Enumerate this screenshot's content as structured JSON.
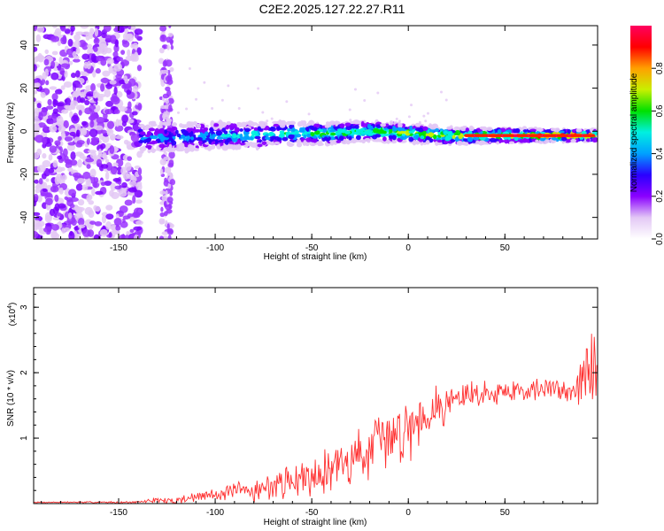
{
  "title": "C2E2.2025.127.22.27.R11",
  "chart_data": [
    {
      "type": "heatmap",
      "xlabel": "Height of straight line (km)",
      "ylabel": "Frequency (Hz)",
      "xlim": [
        -194,
        98
      ],
      "ylim": [
        -50,
        49
      ],
      "xticks": [
        -150,
        -100,
        -50,
        0,
        50
      ],
      "yticks": [
        -40,
        -20,
        0,
        20,
        40
      ],
      "colorbar": {
        "label": "Normalized spectral amplitude",
        "range": [
          0,
          1
        ],
        "ticks": [
          0.0,
          0.2,
          0.4,
          0.6,
          0.8
        ],
        "tick_labels": [
          "0.0",
          "0.2",
          "0.4",
          "0.6",
          "0.8"
        ],
        "colormap": [
          "#ffffff",
          "#e3c8f5",
          "#8a00ff",
          "#2a00ff",
          "#00a0ff",
          "#00f0e0",
          "#00e000",
          "#c8f000",
          "#ffa000",
          "#ff0000",
          "#ff0060"
        ]
      },
      "ridge": [
        {
          "x": -140,
          "y": -3
        },
        {
          "x": -120,
          "y": -3
        },
        {
          "x": -100,
          "y": -2
        },
        {
          "x": -80,
          "y": -2
        },
        {
          "x": -60,
          "y": -1
        },
        {
          "x": -40,
          "y": -1
        },
        {
          "x": -20,
          "y": 0
        },
        {
          "x": 0,
          "y": -1
        },
        {
          "x": 20,
          "y": -2
        },
        {
          "x": 50,
          "y": -2
        },
        {
          "x": 95,
          "y": -2
        }
      ],
      "noise_region_x": [
        -194,
        -139
      ],
      "noise_column_x": [
        -128,
        -122
      ]
    },
    {
      "type": "line",
      "xlabel": "Height of straight line (km)",
      "ylabel": "SNR (10 * v/v)",
      "y_multiplier": "(x10",
      "y_multiplier_exp": "4",
      "y_multiplier_close": ")",
      "xlim": [
        -194,
        98
      ],
      "ylim": [
        0,
        3.3
      ],
      "xticks": [
        -150,
        -100,
        -50,
        0,
        50
      ],
      "yticks": [
        1,
        2,
        3
      ],
      "color": "#ff3030",
      "trend": [
        {
          "x": -194,
          "y": 0.02
        },
        {
          "x": -140,
          "y": 0.02
        },
        {
          "x": -130,
          "y": 0.06
        },
        {
          "x": -125,
          "y": 0.03
        },
        {
          "x": -110,
          "y": 0.1
        },
        {
          "x": -100,
          "y": 0.15
        },
        {
          "x": -80,
          "y": 0.2
        },
        {
          "x": -60,
          "y": 0.35
        },
        {
          "x": -40,
          "y": 0.55
        },
        {
          "x": -20,
          "y": 0.8
        },
        {
          "x": 0,
          "y": 1.2
        },
        {
          "x": 10,
          "y": 1.4
        },
        {
          "x": 20,
          "y": 1.55
        },
        {
          "x": 30,
          "y": 1.65
        },
        {
          "x": 50,
          "y": 1.72
        },
        {
          "x": 70,
          "y": 1.75
        },
        {
          "x": 85,
          "y": 1.75
        },
        {
          "x": 92,
          "y": 1.9
        },
        {
          "x": 98,
          "y": 2.2
        }
      ],
      "noise_amplitude": [
        {
          "x": -194,
          "y": 0.01
        },
        {
          "x": -140,
          "y": 0.02
        },
        {
          "x": -120,
          "y": 0.08
        },
        {
          "x": -100,
          "y": 0.12
        },
        {
          "x": -60,
          "y": 0.3
        },
        {
          "x": -30,
          "y": 0.5
        },
        {
          "x": 0,
          "y": 0.6
        },
        {
          "x": 20,
          "y": 0.35
        },
        {
          "x": 50,
          "y": 0.2
        },
        {
          "x": 85,
          "y": 0.25
        },
        {
          "x": 98,
          "y": 0.9
        }
      ]
    }
  ]
}
